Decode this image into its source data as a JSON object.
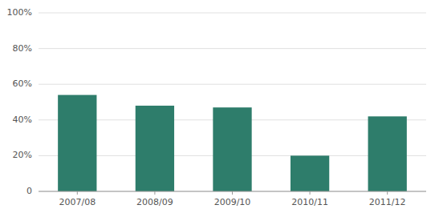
{
  "chart_data": {
    "type": "bar",
    "categories": [
      "2007/08",
      "2008/09",
      "2009/10",
      "2010/11",
      "2011/12"
    ],
    "values": [
      0.54,
      0.48,
      0.47,
      0.2,
      0.42
    ],
    "color": "#2e7d6b",
    "ylim": [
      0,
      1.0
    ],
    "yticks": [
      0,
      {
        "value": 0.2,
        "label": "20%"
      },
      {
        "value": 0.4,
        "label": "40%"
      },
      {
        "value": 0.6,
        "label": "60%"
      },
      {
        "value": 0.8,
        "label": "80%"
      },
      {
        "value": 1.0,
        "label": "100%"
      }
    ],
    "grid": true
  }
}
